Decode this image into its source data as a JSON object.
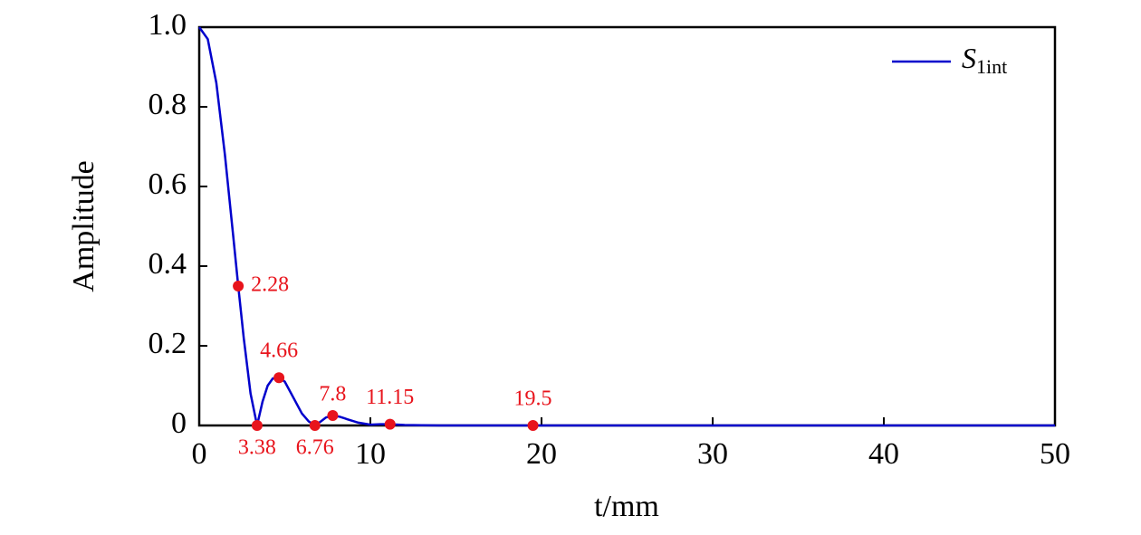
{
  "chart_data": {
    "type": "line",
    "xlabel": "t/mm",
    "ylabel": "Amplitude",
    "xlim": [
      0,
      50
    ],
    "ylim": [
      0,
      1
    ],
    "xticks": [
      0,
      10,
      20,
      30,
      40,
      50
    ],
    "yticks": [
      0,
      0.2,
      0.4,
      0.6,
      0.8,
      {
        "value": 1,
        "label": "1.0"
      }
    ],
    "legend": "upper right",
    "series": [
      {
        "name": "S",
        "name_subscript": "1int",
        "color": "#0000cc",
        "x": [
          0,
          0.5,
          1,
          1.5,
          2,
          2.28,
          2.6,
          3,
          3.38,
          3.7,
          4,
          4.3,
          4.66,
          5,
          5.5,
          6,
          6.4,
          6.76,
          7.1,
          7.4,
          7.8,
          8.2,
          8.7,
          9.3,
          10,
          10.6,
          11.15,
          12,
          14,
          17,
          19.5,
          25,
          30,
          40,
          50
        ],
        "values": [
          1,
          0.97,
          0.86,
          0.68,
          0.47,
          0.35,
          0.22,
          0.08,
          0,
          0.06,
          0.1,
          0.118,
          0.12,
          0.11,
          0.07,
          0.03,
          0.01,
          0,
          0.01,
          0.02,
          0.025,
          0.022,
          0.015,
          0.007,
          0.002,
          0.003,
          0.003,
          0.001,
          0,
          0,
          0,
          0,
          0,
          0,
          0
        ]
      }
    ],
    "markers": {
      "color": "#e8141c",
      "x": [
        2.28,
        3.38,
        4.66,
        6.76,
        7.8,
        11.15,
        19.5
      ],
      "values": [
        0.35,
        0,
        0.12,
        0,
        0.025,
        0.003,
        0
      ]
    }
  }
}
